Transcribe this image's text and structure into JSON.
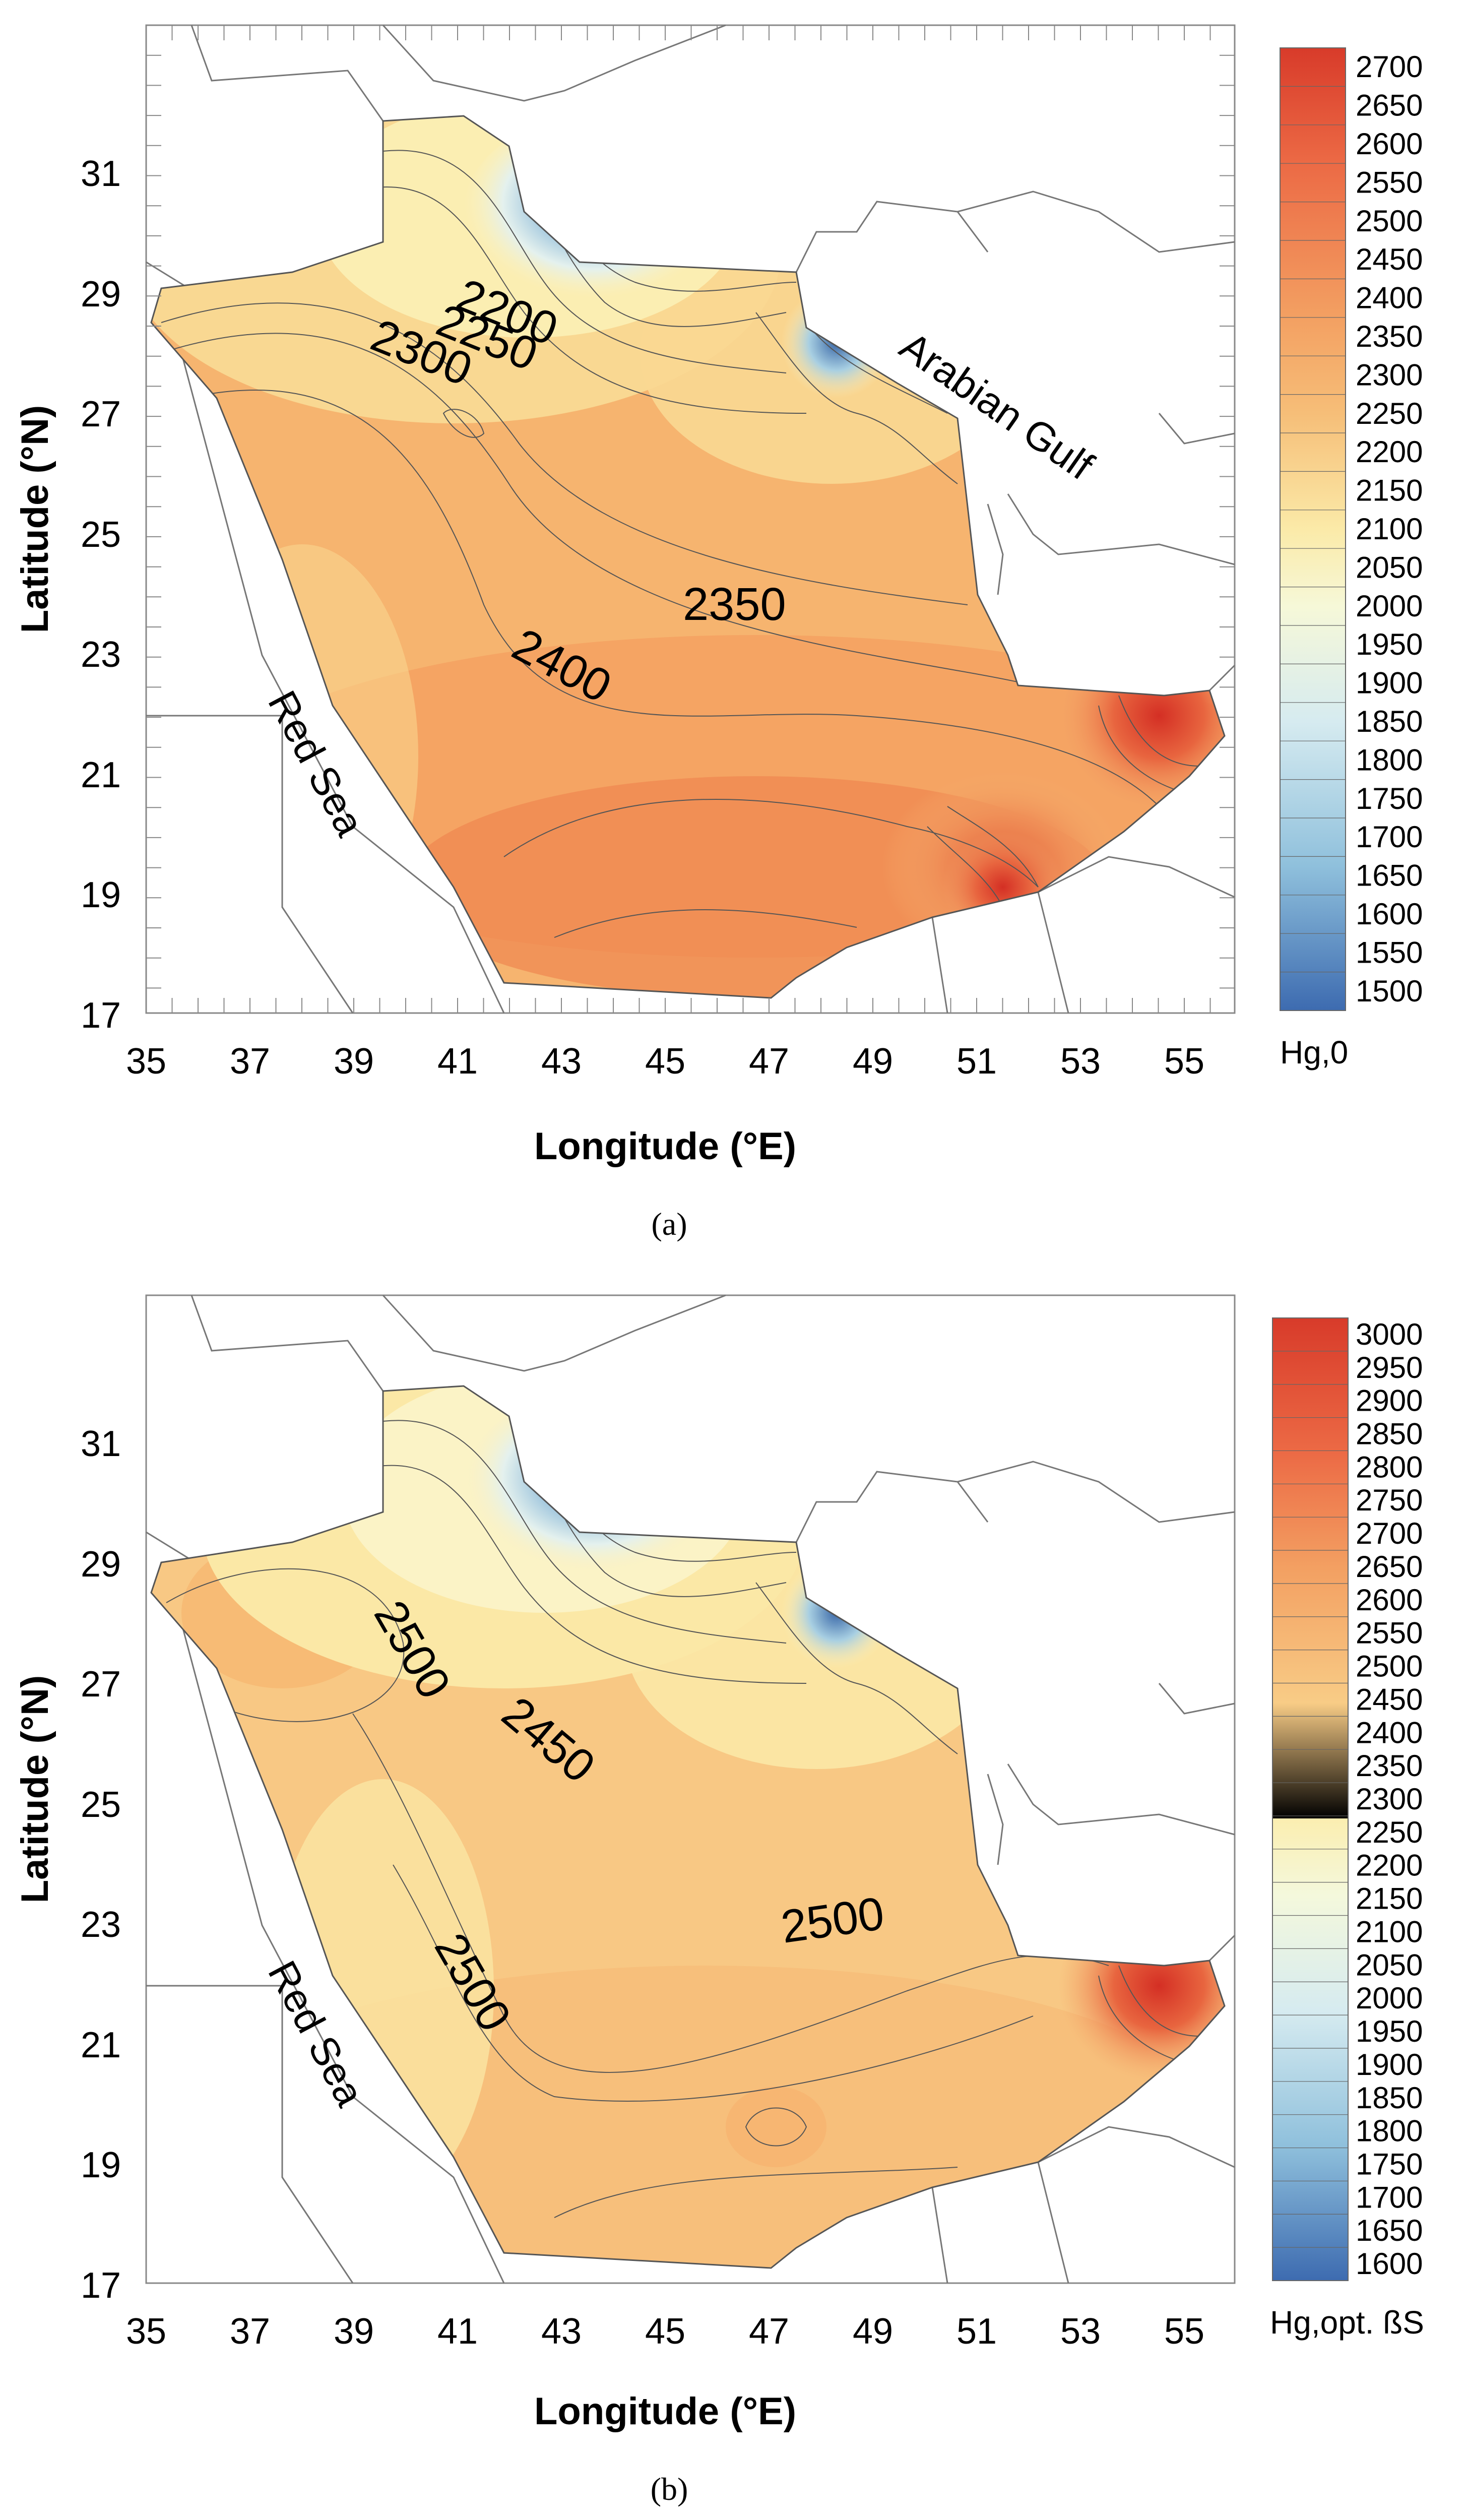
{
  "panels": [
    {
      "id": "a",
      "caption": "(a)",
      "x_axis_label": "Longitude (°E)",
      "y_axis_label": "Latitude (°N)",
      "x_ticks": [
        "35",
        "37",
        "39",
        "41",
        "43",
        "45",
        "47",
        "49",
        "51",
        "53",
        "55"
      ],
      "y_ticks": [
        "31",
        "29",
        "27",
        "25",
        "23",
        "21",
        "19",
        "17"
      ],
      "colorbar_title": "Hg,0",
      "colorbar_ticks": [
        "2700",
        "2650",
        "2600",
        "2550",
        "2500",
        "2450",
        "2400",
        "2350",
        "2300",
        "2250",
        "2200",
        "2150",
        "2100",
        "2050",
        "2000",
        "1950",
        "1900",
        "1850",
        "1800",
        "1750",
        "1700",
        "1650",
        "1600",
        "1550",
        "1500"
      ],
      "contour_labels": [
        "2300",
        "2250",
        "2200",
        "2350",
        "2400"
      ],
      "sea_labels": [
        "Red Sea",
        "Arabian Gulf"
      ]
    },
    {
      "id": "b",
      "caption": "(b)",
      "x_axis_label": "Longitude (°E)",
      "y_axis_label": "Latitude (°N)",
      "x_ticks": [
        "35",
        "37",
        "39",
        "41",
        "43",
        "45",
        "47",
        "49",
        "51",
        "53",
        "55"
      ],
      "y_ticks": [
        "31",
        "29",
        "27",
        "25",
        "23",
        "21",
        "19",
        "17"
      ],
      "colorbar_title": "Hg,opt. ßS",
      "colorbar_ticks": [
        "3000",
        "2950",
        "2900",
        "2850",
        "2800",
        "2750",
        "2700",
        "2650",
        "2600",
        "2550",
        "2500",
        "2450",
        "2400",
        "2350",
        "2300",
        "2250",
        "2200",
        "2150",
        "2100",
        "2050",
        "2000",
        "1950",
        "1900",
        "1850",
        "1800",
        "1750",
        "1700",
        "1650",
        "1600"
      ],
      "contour_labels": [
        "2500",
        "2450",
        "2500",
        "2500"
      ],
      "sea_labels": [
        "Red Sea"
      ]
    }
  ],
  "colors": {
    "max": "#d83b2a",
    "high": "#ef7d4e",
    "mid_high": "#f4ae6c",
    "mid": "#f9d892",
    "pale": "#fbf3c0",
    "low_mid": "#d8ecf2",
    "low": "#8cc0dc",
    "min": "#3e72b0"
  }
}
